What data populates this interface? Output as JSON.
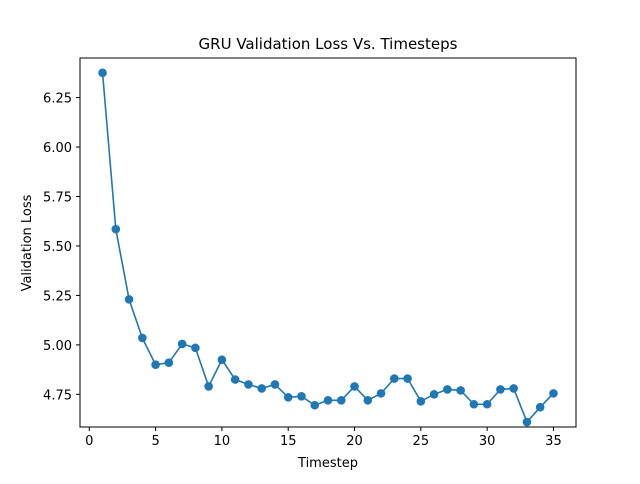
{
  "chart_data": {
    "type": "line",
    "title": "GRU Validation Loss Vs. Timesteps",
    "xlabel": "Timestep",
    "ylabel": "Validation Loss",
    "xlim": [
      -0.7,
      36.7
    ],
    "ylim": [
      4.585,
      6.45
    ],
    "xticks": [
      0,
      5,
      10,
      15,
      20,
      25,
      30,
      35
    ],
    "xtick_labels": [
      "0",
      "5",
      "10",
      "15",
      "20",
      "25",
      "30",
      "35"
    ],
    "yticks": [
      4.75,
      5.0,
      5.25,
      5.5,
      5.75,
      6.0,
      6.25
    ],
    "ytick_labels": [
      "4.75",
      "5.00",
      "5.25",
      "5.50",
      "5.75",
      "6.00",
      "6.25"
    ],
    "grid": false,
    "legend": "none",
    "series": [
      {
        "color": "#1f77b4",
        "marker": "circle",
        "x": [
          1,
          2,
          3,
          4,
          5,
          6,
          7,
          8,
          9,
          10,
          11,
          12,
          13,
          14,
          15,
          16,
          17,
          18,
          19,
          20,
          21,
          22,
          23,
          24,
          25,
          26,
          27,
          28,
          29,
          30,
          31,
          32,
          33,
          34,
          35
        ],
        "values": [
          6.375,
          5.585,
          5.23,
          5.035,
          4.9,
          4.91,
          5.005,
          4.985,
          4.79,
          4.925,
          4.825,
          4.8,
          4.78,
          4.8,
          4.735,
          4.74,
          4.695,
          4.72,
          4.72,
          4.79,
          4.72,
          4.755,
          4.83,
          4.83,
          4.715,
          4.75,
          4.775,
          4.77,
          4.7,
          4.7,
          4.775,
          4.78,
          4.61,
          4.685,
          4.755
        ]
      }
    ]
  }
}
